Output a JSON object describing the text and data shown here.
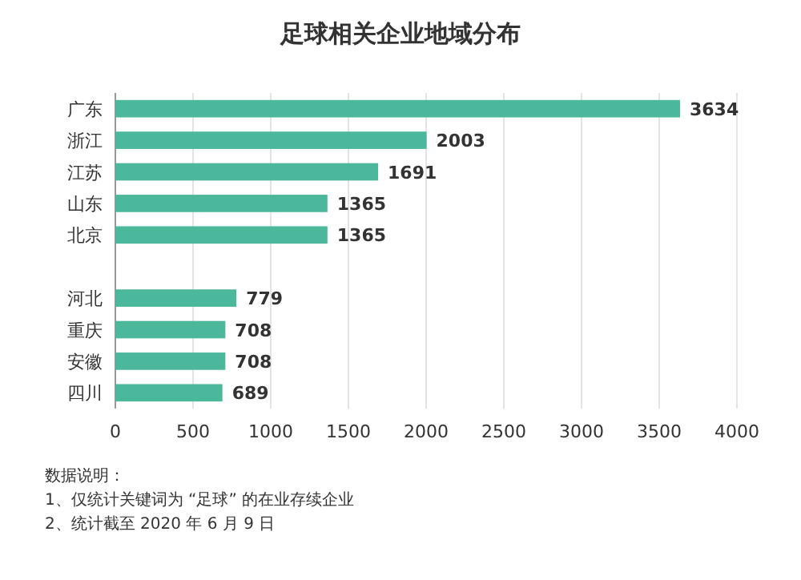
{
  "chart_data": {
    "type": "bar",
    "orientation": "horizontal",
    "title": "足球相关企业地域分布",
    "categories": [
      "广东",
      "浙江",
      "江苏",
      "山东",
      "北京",
      null,
      "河北",
      "重庆",
      "安徽",
      "四川"
    ],
    "values": [
      3634,
      2003,
      1691,
      1365,
      1365,
      null,
      779,
      708,
      708,
      689
    ],
    "color": "#4cb89b",
    "xlim": [
      0,
      4000
    ],
    "xticks": [
      0,
      500,
      1000,
      1500,
      2000,
      2500,
      3000,
      3500,
      4000
    ],
    "grid": "x",
    "data_labels": true,
    "annotations": [
      "数据说明：",
      "1、仅统计关键词为 “足球” 的在业存续企业",
      "2、统计截至 2020 年 6 月 9 日"
    ]
  }
}
